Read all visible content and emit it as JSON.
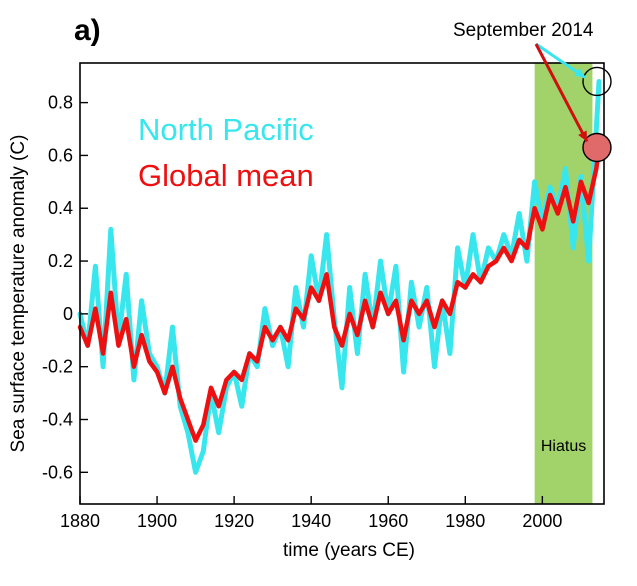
{
  "chart_data": {
    "type": "line",
    "panel_label": "a)",
    "xlabel": "time (years CE)",
    "ylabel": "Sea surface temperature anomaly (C)",
    "xlim": [
      1880,
      2016
    ],
    "ylim": [
      -0.72,
      0.95
    ],
    "xticks": [
      1880,
      1900,
      1920,
      1940,
      1960,
      1980,
      2000
    ],
    "yticks": [
      -0.6,
      -0.4,
      -0.2,
      0,
      0.2,
      0.4,
      0.6,
      0.8
    ],
    "ytick_labels": [
      "-0.6",
      "-0.4",
      "-0.2",
      "0",
      "0.2",
      "0.4",
      "0.6",
      "0.8"
    ],
    "grid": false,
    "legend_position": "top-left",
    "hiatus": {
      "label": "Hiatus",
      "x_start": 1998,
      "x_end": 2013,
      "color": "#a2d36a"
    },
    "annotation": {
      "text": "September 2014",
      "x": 2014.7
    },
    "series": [
      {
        "name": "North Pacific",
        "color": "#38e6ee",
        "x": [
          1880,
          1882,
          1884,
          1886,
          1888,
          1890,
          1892,
          1894,
          1896,
          1898,
          1900,
          1902,
          1904,
          1906,
          1908,
          1910,
          1912,
          1914,
          1916,
          1918,
          1920,
          1922,
          1924,
          1926,
          1928,
          1930,
          1932,
          1934,
          1936,
          1938,
          1940,
          1942,
          1944,
          1946,
          1948,
          1950,
          1952,
          1954,
          1956,
          1958,
          1960,
          1962,
          1964,
          1966,
          1968,
          1970,
          1972,
          1974,
          1976,
          1978,
          1980,
          1982,
          1984,
          1986,
          1988,
          1990,
          1992,
          1994,
          1996,
          1998,
          2000,
          2002,
          2004,
          2006,
          2008,
          2010,
          2012,
          2014,
          2014.7
        ],
        "y": [
          0.0,
          -0.12,
          0.18,
          -0.2,
          0.32,
          -0.1,
          0.15,
          -0.25,
          0.05,
          -0.15,
          -0.2,
          -0.3,
          -0.05,
          -0.35,
          -0.45,
          -0.6,
          -0.52,
          -0.3,
          -0.45,
          -0.28,
          -0.22,
          -0.35,
          -0.15,
          -0.2,
          0.02,
          -0.12,
          -0.05,
          -0.2,
          0.1,
          -0.05,
          0.22,
          0.05,
          0.3,
          -0.02,
          -0.28,
          0.1,
          -0.15,
          0.15,
          -0.05,
          0.2,
          0.0,
          0.18,
          -0.22,
          0.12,
          -0.05,
          0.1,
          -0.2,
          0.05,
          -0.15,
          0.25,
          0.1,
          0.3,
          0.12,
          0.25,
          0.2,
          0.3,
          0.22,
          0.38,
          0.2,
          0.5,
          0.35,
          0.48,
          0.4,
          0.55,
          0.25,
          0.52,
          0.2,
          0.7,
          0.88
        ]
      },
      {
        "name": "Global mean",
        "color": "#ee1010",
        "x": [
          1880,
          1882,
          1884,
          1886,
          1888,
          1890,
          1892,
          1894,
          1896,
          1898,
          1900,
          1902,
          1904,
          1906,
          1908,
          1910,
          1912,
          1914,
          1916,
          1918,
          1920,
          1922,
          1924,
          1926,
          1928,
          1930,
          1932,
          1934,
          1936,
          1938,
          1940,
          1942,
          1944,
          1946,
          1948,
          1950,
          1952,
          1954,
          1956,
          1958,
          1960,
          1962,
          1964,
          1966,
          1968,
          1970,
          1972,
          1974,
          1976,
          1978,
          1980,
          1982,
          1984,
          1986,
          1988,
          1990,
          1992,
          1994,
          1996,
          1998,
          2000,
          2002,
          2004,
          2006,
          2008,
          2010,
          2012,
          2014,
          2014.7
        ],
        "y": [
          -0.05,
          -0.12,
          0.02,
          -0.15,
          0.08,
          -0.12,
          -0.02,
          -0.2,
          -0.08,
          -0.18,
          -0.22,
          -0.3,
          -0.2,
          -0.32,
          -0.4,
          -0.48,
          -0.42,
          -0.28,
          -0.35,
          -0.25,
          -0.22,
          -0.25,
          -0.15,
          -0.18,
          -0.05,
          -0.1,
          -0.05,
          -0.1,
          0.02,
          -0.02,
          0.1,
          0.05,
          0.15,
          -0.05,
          -0.12,
          0.0,
          -0.08,
          0.05,
          -0.05,
          0.08,
          0.0,
          0.05,
          -0.1,
          0.05,
          0.0,
          0.05,
          -0.05,
          0.05,
          0.0,
          0.12,
          0.1,
          0.15,
          0.12,
          0.18,
          0.2,
          0.25,
          0.2,
          0.28,
          0.25,
          0.4,
          0.32,
          0.45,
          0.38,
          0.48,
          0.35,
          0.5,
          0.42,
          0.55,
          0.63
        ]
      }
    ]
  }
}
